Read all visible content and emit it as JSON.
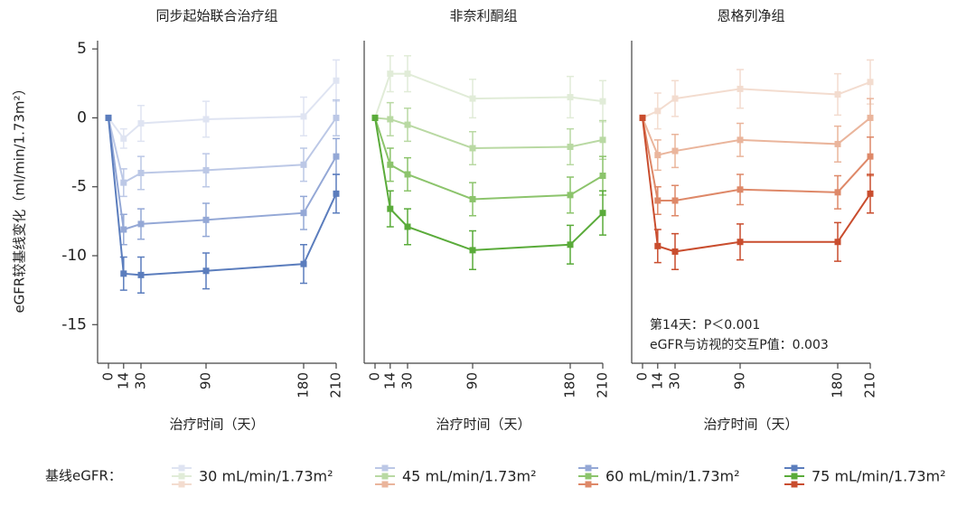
{
  "chart_data": [
    {
      "type": "line",
      "title": "同步起始联合治疗组",
      "x_label": "治疗时间（天）",
      "y_label": "eGFR较基线变化（ml/min/1.73m²）",
      "x": [
        0,
        14,
        30,
        90,
        180,
        210
      ],
      "xlim": [
        -10,
        210
      ],
      "xticks": [
        0,
        14,
        30,
        90,
        180,
        210
      ],
      "ylim": [
        -17.8,
        5.6
      ],
      "yticks": [
        5,
        0,
        -5,
        -10,
        -15
      ],
      "series": [
        {
          "name": "30 mL/min/1.73m²",
          "color": "#dfe4f2",
          "values": [
            0,
            -1.5,
            -0.4,
            -0.1,
            0.1,
            2.7
          ],
          "errors": [
            0,
            0.7,
            1.3,
            1.3,
            1.4,
            1.5
          ]
        },
        {
          "name": "45 mL/min/1.73m²",
          "color": "#bcc8e6",
          "values": [
            0,
            -4.7,
            -4.0,
            -3.8,
            -3.4,
            0
          ],
          "errors": [
            0,
            1.0,
            1.2,
            1.2,
            1.2,
            1.3
          ]
        },
        {
          "name": "60 mL/min/1.73m²",
          "color": "#94a8d6",
          "values": [
            0,
            -8.1,
            -7.7,
            -7.4,
            -6.9,
            -2.8
          ],
          "errors": [
            0,
            1.1,
            1.1,
            1.2,
            1.2,
            1.3
          ]
        },
        {
          "name": "75 mL/min/1.73m²",
          "color": "#5b7dbd",
          "values": [
            0,
            -11.3,
            -11.4,
            -11.1,
            -10.6,
            -5.5
          ],
          "errors": [
            0,
            1.2,
            1.3,
            1.3,
            1.4,
            1.4
          ]
        }
      ]
    },
    {
      "type": "line",
      "title": "非奈利酮组",
      "x_label": "治疗时间（天）",
      "x": [
        0,
        14,
        30,
        90,
        180,
        210
      ],
      "xlim": [
        -10,
        210
      ],
      "xticks": [
        0,
        14,
        30,
        90,
        180,
        210
      ],
      "ylim": [
        -17.8,
        5.6
      ],
      "series": [
        {
          "name": "30 mL/min/1.73m²",
          "color": "#e1ecd8",
          "values": [
            0,
            3.2,
            3.2,
            1.4,
            1.5,
            1.2
          ],
          "errors": [
            0,
            1.3,
            1.3,
            1.4,
            1.5,
            1.5
          ]
        },
        {
          "name": "45 mL/min/1.73m²",
          "color": "#b9d9a3",
          "values": [
            0,
            -0.1,
            -0.5,
            -2.2,
            -2.1,
            -1.6
          ],
          "errors": [
            0,
            1.2,
            1.2,
            1.2,
            1.3,
            1.4
          ]
        },
        {
          "name": "60 mL/min/1.73m²",
          "color": "#8cc46c",
          "values": [
            0,
            -3.4,
            -4.1,
            -5.9,
            -5.6,
            -4.2
          ],
          "errors": [
            0,
            1.2,
            1.2,
            1.2,
            1.3,
            1.4
          ]
        },
        {
          "name": "75 mL/min/1.73m²",
          "color": "#5aab3a",
          "values": [
            0,
            -6.6,
            -7.9,
            -9.6,
            -9.2,
            -6.9
          ],
          "errors": [
            0,
            1.3,
            1.3,
            1.4,
            1.4,
            1.6
          ]
        }
      ]
    },
    {
      "type": "line",
      "title": "恩格列净组",
      "x_label": "治疗时间（天）",
      "x": [
        0,
        14,
        30,
        90,
        180,
        210
      ],
      "xlim": [
        -10,
        210
      ],
      "xticks": [
        0,
        14,
        30,
        90,
        180,
        210
      ],
      "ylim": [
        -17.8,
        5.6
      ],
      "annotations": [
        "第14天：P＜0.001",
        "eGFR与访视的交互P值：0.003"
      ],
      "series": [
        {
          "name": "30 mL/min/1.73m²",
          "color": "#f3dccf",
          "values": [
            0,
            0.5,
            1.4,
            2.1,
            1.7,
            2.6
          ],
          "errors": [
            0,
            1.3,
            1.3,
            1.4,
            1.5,
            1.6
          ]
        },
        {
          "name": "45 mL/min/1.73m²",
          "color": "#eab59c",
          "values": [
            0,
            -2.7,
            -2.4,
            -1.6,
            -1.9,
            0
          ],
          "errors": [
            0,
            1.1,
            1.2,
            1.2,
            1.3,
            1.4
          ]
        },
        {
          "name": "60 mL/min/1.73m²",
          "color": "#de8868",
          "values": [
            0,
            -6.0,
            -6.0,
            -5.2,
            -5.4,
            -2.8
          ],
          "errors": [
            0,
            1.0,
            1.1,
            1.1,
            1.2,
            1.4
          ]
        },
        {
          "name": "75 mL/min/1.73m²",
          "color": "#c94d2e",
          "values": [
            0,
            -9.3,
            -9.7,
            -9.0,
            -9.0,
            -5.5
          ],
          "errors": [
            0,
            1.2,
            1.3,
            1.3,
            1.4,
            1.4
          ]
        }
      ]
    }
  ],
  "legend_title": "基线eGFR："
}
